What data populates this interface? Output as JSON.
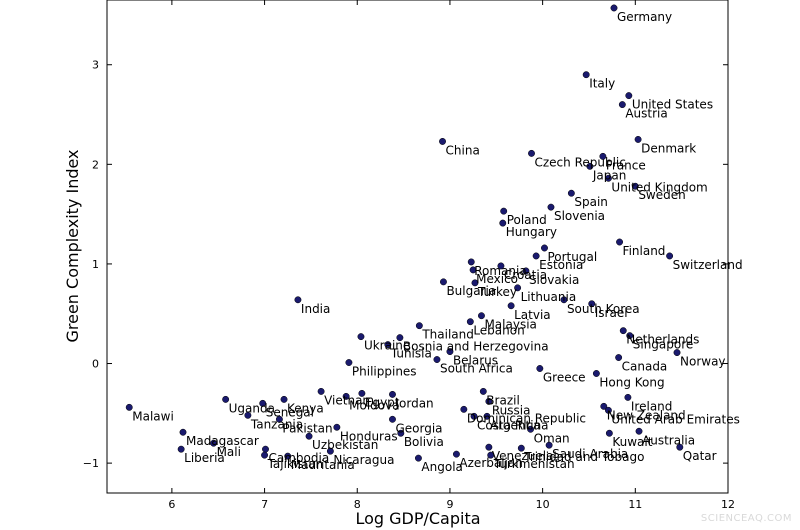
{
  "chart_data": {
    "type": "scatter",
    "title": "",
    "xlabel": "Log GDP/Capita",
    "ylabel": "Green Complexity Index",
    "xlim": [
      5.3,
      12
    ],
    "ylim": [
      -1.3,
      3.65
    ],
    "xticks": [
      6,
      7,
      8,
      9,
      10,
      11,
      12
    ],
    "yticks": [
      -1,
      0,
      1,
      2,
      3
    ],
    "grid": false,
    "marker_color": "#1a1a6e",
    "points": [
      {
        "label": "Germany",
        "x": 10.77,
        "y": 3.57
      },
      {
        "label": "Italy",
        "x": 10.47,
        "y": 2.9
      },
      {
        "label": "United States",
        "x": 10.93,
        "y": 2.69
      },
      {
        "label": "Austria",
        "x": 10.86,
        "y": 2.6
      },
      {
        "label": "Denmark",
        "x": 11.03,
        "y": 2.25
      },
      {
        "label": "China",
        "x": 8.92,
        "y": 2.23
      },
      {
        "label": "Czech Republic",
        "x": 9.88,
        "y": 2.11
      },
      {
        "label": "France",
        "x": 10.65,
        "y": 2.08
      },
      {
        "label": "Japan",
        "x": 10.51,
        "y": 1.98
      },
      {
        "label": "United Kingdom",
        "x": 10.71,
        "y": 1.86
      },
      {
        "label": "Sweden",
        "x": 11.0,
        "y": 1.78
      },
      {
        "label": "Spain",
        "x": 10.31,
        "y": 1.71
      },
      {
        "label": "Slovenia",
        "x": 10.09,
        "y": 1.57
      },
      {
        "label": "Poland",
        "x": 9.58,
        "y": 1.53
      },
      {
        "label": "Hungary",
        "x": 9.57,
        "y": 1.41
      },
      {
        "label": "Finland",
        "x": 10.83,
        "y": 1.22
      },
      {
        "label": "Portugal",
        "x": 10.02,
        "y": 1.16
      },
      {
        "label": "Switzerland",
        "x": 11.37,
        "y": 1.08
      },
      {
        "label": "Estonia",
        "x": 9.93,
        "y": 1.08
      },
      {
        "label": "Romania",
        "x": 9.23,
        "y": 1.02
      },
      {
        "label": "Mexico",
        "x": 9.25,
        "y": 0.94
      },
      {
        "label": "Slovakia",
        "x": 9.82,
        "y": 0.93
      },
      {
        "label": "Croatia",
        "x": 9.55,
        "y": 0.98
      },
      {
        "label": "Bulgaria",
        "x": 8.93,
        "y": 0.82
      },
      {
        "label": "Turkey",
        "x": 9.27,
        "y": 0.81
      },
      {
        "label": "Lithuania",
        "x": 9.73,
        "y": 0.76
      },
      {
        "label": "India",
        "x": 7.36,
        "y": 0.64
      },
      {
        "label": "South Korea",
        "x": 10.23,
        "y": 0.64
      },
      {
        "label": "Israel",
        "x": 10.53,
        "y": 0.6
      },
      {
        "label": "Latvia",
        "x": 9.66,
        "y": 0.58
      },
      {
        "label": "Malaysia",
        "x": 9.34,
        "y": 0.48
      },
      {
        "label": "Lebanon",
        "x": 9.22,
        "y": 0.42
      },
      {
        "label": "Thailand",
        "x": 8.67,
        "y": 0.38
      },
      {
        "label": "Netherlands",
        "x": 10.87,
        "y": 0.33
      },
      {
        "label": "Singapore",
        "x": 10.94,
        "y": 0.28
      },
      {
        "label": "Ukraine",
        "x": 8.04,
        "y": 0.27
      },
      {
        "label": "Bosnia and Herzegovina",
        "x": 8.46,
        "y": 0.26
      },
      {
        "label": "Tunisia",
        "x": 8.33,
        "y": 0.19
      },
      {
        "label": "Belarus",
        "x": 9.0,
        "y": 0.12
      },
      {
        "label": "Norway",
        "x": 11.45,
        "y": 0.11
      },
      {
        "label": "Canada",
        "x": 10.82,
        "y": 0.06
      },
      {
        "label": "South Africa",
        "x": 8.86,
        "y": 0.04
      },
      {
        "label": "Philippines",
        "x": 7.91,
        "y": 0.01
      },
      {
        "label": "Greece",
        "x": 9.97,
        "y": -0.05
      },
      {
        "label": "Hong Kong",
        "x": 10.58,
        "y": -0.1
      },
      {
        "label": "Brazil",
        "x": 9.36,
        "y": -0.28
      },
      {
        "label": "Egypt",
        "x": 8.05,
        "y": -0.3
      },
      {
        "label": "Jordan",
        "x": 8.38,
        "y": -0.31
      },
      {
        "label": "Vietnam",
        "x": 7.61,
        "y": -0.28
      },
      {
        "label": "Moldova",
        "x": 7.88,
        "y": -0.33
      },
      {
        "label": "Kenya",
        "x": 7.21,
        "y": -0.36
      },
      {
        "label": "Uganda",
        "x": 6.58,
        "y": -0.36
      },
      {
        "label": "Senegal",
        "x": 6.98,
        "y": -0.4
      },
      {
        "label": "Russia",
        "x": 9.42,
        "y": -0.38
      },
      {
        "label": "Ireland",
        "x": 10.92,
        "y": -0.34
      },
      {
        "label": "Malawi",
        "x": 5.54,
        "y": -0.44
      },
      {
        "label": "New Zealand",
        "x": 10.66,
        "y": -0.43
      },
      {
        "label": "United Arab Emirates",
        "x": 10.71,
        "y": -0.47
      },
      {
        "label": "Dominican Republic",
        "x": 9.15,
        "y": -0.46
      },
      {
        "label": "Argentina",
        "x": 9.4,
        "y": -0.53
      },
      {
        "label": "Georgia",
        "x": 8.38,
        "y": -0.56
      },
      {
        "label": "Tanzania",
        "x": 6.82,
        "y": -0.52
      },
      {
        "label": "Pakistan",
        "x": 7.16,
        "y": -0.56
      },
      {
        "label": "Honduras",
        "x": 7.78,
        "y": -0.64
      },
      {
        "label": "Costa Rica",
        "x": 9.26,
        "y": -0.53
      },
      {
        "label": "Oman",
        "x": 9.87,
        "y": -0.66
      },
      {
        "label": "Kuwait",
        "x": 10.72,
        "y": -0.7
      },
      {
        "label": "Australia",
        "x": 11.04,
        "y": -0.68
      },
      {
        "label": "Madagascar",
        "x": 6.12,
        "y": -0.69
      },
      {
        "label": "Mali",
        "x": 6.45,
        "y": -0.8
      },
      {
        "label": "Uzbekistan",
        "x": 7.48,
        "y": -0.73
      },
      {
        "label": "Liberia",
        "x": 6.1,
        "y": -0.86
      },
      {
        "label": "Cambodia",
        "x": 7.01,
        "y": -0.86
      },
      {
        "label": "Tajikistan",
        "x": 7.0,
        "y": -0.92
      },
      {
        "label": "Mauritania",
        "x": 7.25,
        "y": -0.93
      },
      {
        "label": "Nicaragua",
        "x": 7.71,
        "y": -0.88
      },
      {
        "label": "Bolivia",
        "x": 8.47,
        "y": -0.7
      },
      {
        "label": "Saudi Arabia",
        "x": 10.07,
        "y": -0.82
      },
      {
        "label": "Trinidad and Tobago",
        "x": 9.77,
        "y": -0.85
      },
      {
        "label": "Qatar",
        "x": 11.48,
        "y": -0.84
      },
      {
        "label": "Azerbaijan",
        "x": 9.07,
        "y": -0.91
      },
      {
        "label": "Turkmenistan",
        "x": 9.44,
        "y": -0.92
      },
      {
        "label": "Angola",
        "x": 8.66,
        "y": -0.95
      },
      {
        "label": "Venezuela",
        "x": 9.42,
        "y": -0.84
      }
    ]
  }
}
